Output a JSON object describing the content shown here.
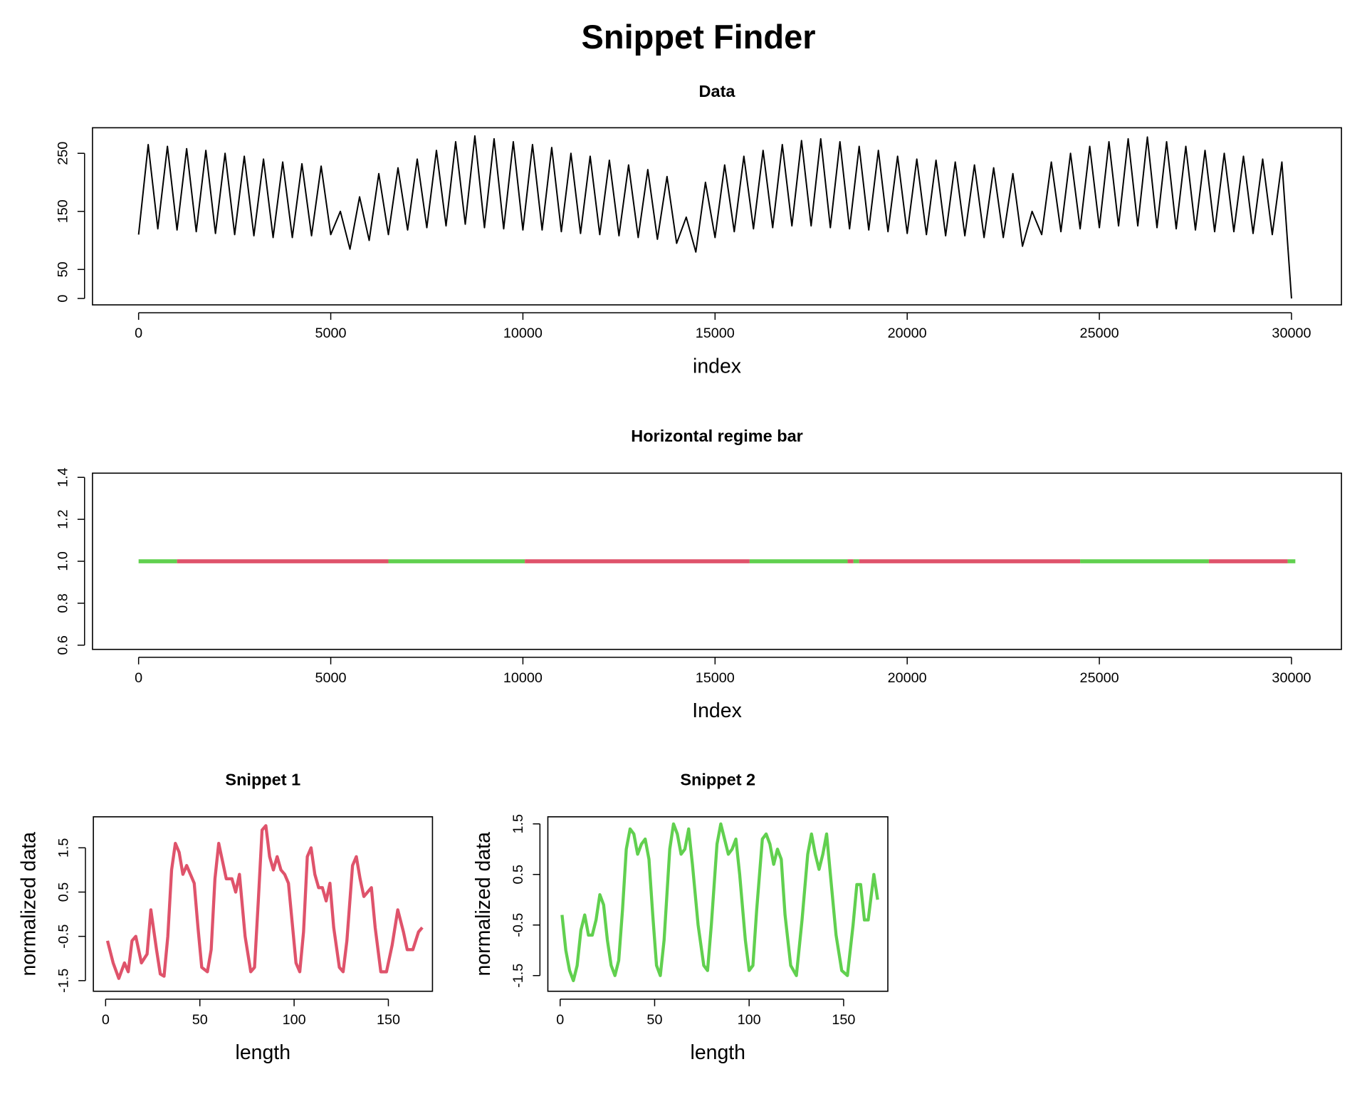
{
  "title": "Snippet Finder",
  "chart_data": [
    {
      "type": "line",
      "title": "Data",
      "xlabel": "index",
      "color": "#000000",
      "x": [
        0,
        250,
        500,
        750,
        1000,
        1250,
        1500,
        1750,
        2000,
        2250,
        2500,
        2750,
        3000,
        3250,
        3500,
        3750,
        4000,
        4250,
        4500,
        4750,
        5000,
        5250,
        5500,
        5750,
        6000,
        6250,
        6500,
        6750,
        7000,
        7250,
        7500,
        7750,
        8000,
        8250,
        8500,
        8750,
        9000,
        9250,
        9500,
        9750,
        10000,
        10250,
        10500,
        10750,
        11000,
        11250,
        11500,
        11750,
        12000,
        12250,
        12500,
        12750,
        13000,
        13250,
        13500,
        13750,
        14000,
        14250,
        14500,
        14750,
        15000,
        15250,
        15500,
        15750,
        16000,
        16250,
        16500,
        16750,
        17000,
        17250,
        17500,
        17750,
        18000,
        18250,
        18500,
        18750,
        19000,
        19250,
        19500,
        19750,
        20000,
        20250,
        20500,
        20750,
        21000,
        21250,
        21500,
        21750,
        22000,
        22250,
        22500,
        22750,
        23000,
        23250,
        23500,
        23750,
        24000,
        24250,
        24500,
        24750,
        25000,
        25250,
        25500,
        25750,
        26000,
        26250,
        26500,
        26750,
        27000,
        27250,
        27500,
        27750,
        28000,
        28250,
        28500,
        28750,
        29000,
        29250,
        29500,
        29750,
        30000
      ],
      "values": [
        110,
        265,
        120,
        262,
        118,
        258,
        115,
        255,
        112,
        250,
        110,
        245,
        108,
        240,
        105,
        235,
        105,
        232,
        108,
        228,
        110,
        150,
        85,
        175,
        100,
        215,
        110,
        225,
        118,
        240,
        122,
        255,
        125,
        270,
        128,
        280,
        122,
        275,
        120,
        270,
        118,
        265,
        118,
        260,
        115,
        250,
        112,
        245,
        110,
        238,
        108,
        230,
        105,
        222,
        102,
        210,
        95,
        140,
        80,
        200,
        105,
        230,
        115,
        245,
        120,
        255,
        122,
        265,
        125,
        272,
        125,
        275,
        122,
        270,
        120,
        262,
        118,
        255,
        115,
        245,
        112,
        240,
        110,
        238,
        108,
        235,
        108,
        230,
        105,
        225,
        105,
        215,
        90,
        150,
        110,
        235,
        115,
        250,
        120,
        262,
        122,
        270,
        125,
        275,
        125,
        278,
        122,
        270,
        120,
        262,
        118,
        255,
        115,
        250,
        115,
        245,
        112,
        240,
        110,
        235,
        0
      ],
      "xlim": [
        -1200,
        31300
      ],
      "ylim": [
        -11,
        294
      ],
      "xticks": [
        0,
        5000,
        10000,
        15000,
        20000,
        25000,
        30000
      ],
      "yticks": [
        0,
        50,
        150,
        250
      ]
    },
    {
      "type": "regime",
      "title": "Horizontal regime bar",
      "xlabel": "Index",
      "segments": [
        {
          "start": 0,
          "end": 1000,
          "value": 1,
          "color": "#61d04f"
        },
        {
          "start": 1000,
          "end": 6500,
          "value": 1,
          "color": "#df536b"
        },
        {
          "start": 6500,
          "end": 10050,
          "value": 1,
          "color": "#61d04f"
        },
        {
          "start": 10050,
          "end": 15900,
          "value": 1,
          "color": "#df536b"
        },
        {
          "start": 15900,
          "end": 18450,
          "value": 1,
          "color": "#61d04f"
        },
        {
          "start": 18450,
          "end": 18600,
          "value": 1,
          "color": "#df536b"
        },
        {
          "start": 18600,
          "end": 18750,
          "value": 1,
          "color": "#61d04f"
        },
        {
          "start": 18750,
          "end": 24500,
          "value": 1,
          "color": "#df536b"
        },
        {
          "start": 24500,
          "end": 27850,
          "value": 1,
          "color": "#61d04f"
        },
        {
          "start": 27850,
          "end": 29900,
          "value": 1,
          "color": "#df536b"
        },
        {
          "start": 29900,
          "end": 30100,
          "value": 1,
          "color": "#61d04f"
        }
      ],
      "xlim": [
        -1200,
        31300
      ],
      "ylim": [
        0.58,
        1.42
      ],
      "xticks": [
        0,
        5000,
        10000,
        15000,
        20000,
        25000,
        30000
      ],
      "yticks": [
        0.6,
        0.8,
        {
          "value": 1,
          "label": "1.0"
        },
        1.2,
        1.4
      ]
    },
    {
      "type": "line",
      "title": "Snippet 1",
      "xlabel": "length",
      "ylabel": "normalized data",
      "color": "#df536b",
      "x": [
        1,
        4,
        7,
        10,
        12,
        14,
        16,
        19,
        22,
        24,
        27,
        29,
        31,
        33,
        35,
        37,
        39,
        41,
        43,
        45,
        47,
        49,
        51,
        54,
        56,
        58,
        60,
        62,
        64,
        67,
        69,
        71,
        74,
        77,
        79,
        81,
        83,
        85,
        87,
        89,
        91,
        93,
        95,
        97,
        99,
        101,
        103,
        105,
        107,
        109,
        111,
        113,
        115,
        117,
        119,
        121,
        124,
        126,
        128,
        131,
        133,
        135,
        137,
        139,
        141,
        143,
        146,
        149,
        152,
        155,
        158,
        160,
        163,
        166,
        168
      ],
      "values": [
        -0.6,
        -1.1,
        -1.45,
        -1.1,
        -1.3,
        -0.6,
        -0.5,
        -1.1,
        -0.9,
        0.1,
        -0.8,
        -1.35,
        -1.4,
        -0.5,
        1.0,
        1.6,
        1.4,
        0.9,
        1.1,
        0.9,
        0.7,
        -0.3,
        -1.2,
        -1.3,
        -0.8,
        0.8,
        1.6,
        1.2,
        0.8,
        0.8,
        0.5,
        0.9,
        -0.5,
        -1.3,
        -1.2,
        0.3,
        1.9,
        2.0,
        1.3,
        1.0,
        1.3,
        1.0,
        0.9,
        0.7,
        -0.2,
        -1.1,
        -1.3,
        -0.4,
        1.3,
        1.5,
        0.9,
        0.6,
        0.6,
        0.3,
        0.7,
        -0.3,
        -1.2,
        -1.3,
        -0.6,
        1.1,
        1.3,
        0.8,
        0.4,
        0.5,
        0.6,
        -0.3,
        -1.3,
        -1.3,
        -0.7,
        0.1,
        -0.4,
        -0.8,
        -0.8,
        -0.4,
        -0.3
      ],
      "xlim": [
        -6.5,
        173.4
      ],
      "ylim": [
        -1.74,
        2.2
      ],
      "xticks": [
        0,
        50,
        100,
        150
      ],
      "yticks": [
        -1.5,
        -0.5,
        0.5,
        1.5
      ]
    },
    {
      "type": "line",
      "title": "Snippet 2",
      "xlabel": "length",
      "ylabel": "normalized data",
      "color": "#61d04f",
      "x": [
        1,
        3,
        5,
        7,
        9,
        11,
        13,
        15,
        17,
        19,
        21,
        23,
        25,
        27,
        29,
        31,
        33,
        35,
        37,
        39,
        41,
        43,
        45,
        47,
        49,
        51,
        53,
        55,
        58,
        60,
        62,
        64,
        66,
        68,
        70,
        73,
        76,
        78,
        80,
        83,
        85,
        87,
        89,
        91,
        93,
        95,
        98,
        100,
        102,
        104,
        107,
        109,
        111,
        113,
        115,
        117,
        119,
        122,
        125,
        128,
        131,
        133,
        135,
        137,
        139,
        141,
        143,
        146,
        149,
        152,
        155,
        157,
        159,
        161,
        163,
        165,
        166,
        168
      ],
      "values": [
        -0.3,
        -1.0,
        -1.4,
        -1.6,
        -1.3,
        -0.6,
        -0.3,
        -0.7,
        -0.7,
        -0.4,
        0.1,
        -0.1,
        -0.8,
        -1.3,
        -1.5,
        -1.2,
        -0.2,
        1.0,
        1.4,
        1.3,
        0.9,
        1.1,
        1.2,
        0.8,
        -0.3,
        -1.3,
        -1.5,
        -0.8,
        1.0,
        1.5,
        1.3,
        0.9,
        1.0,
        1.4,
        0.7,
        -0.5,
        -1.3,
        -1.4,
        -0.5,
        1.1,
        1.5,
        1.2,
        0.9,
        1.0,
        1.2,
        0.5,
        -0.8,
        -1.4,
        -1.3,
        -0.2,
        1.2,
        1.3,
        1.1,
        0.7,
        1.0,
        0.8,
        -0.3,
        -1.3,
        -1.5,
        -0.4,
        0.9,
        1.3,
        0.9,
        0.6,
        0.9,
        1.3,
        0.5,
        -0.7,
        -1.4,
        -1.5,
        -0.5,
        0.3,
        0.3,
        -0.4,
        -0.4,
        0.2,
        0.5,
        0.0
      ],
      "xlim": [
        -6.5,
        173.4
      ],
      "ylim": [
        -1.81,
        1.64
      ],
      "xticks": [
        0,
        50,
        100,
        150
      ],
      "yticks": [
        -1.5,
        -0.5,
        0.5,
        1.5
      ]
    }
  ]
}
